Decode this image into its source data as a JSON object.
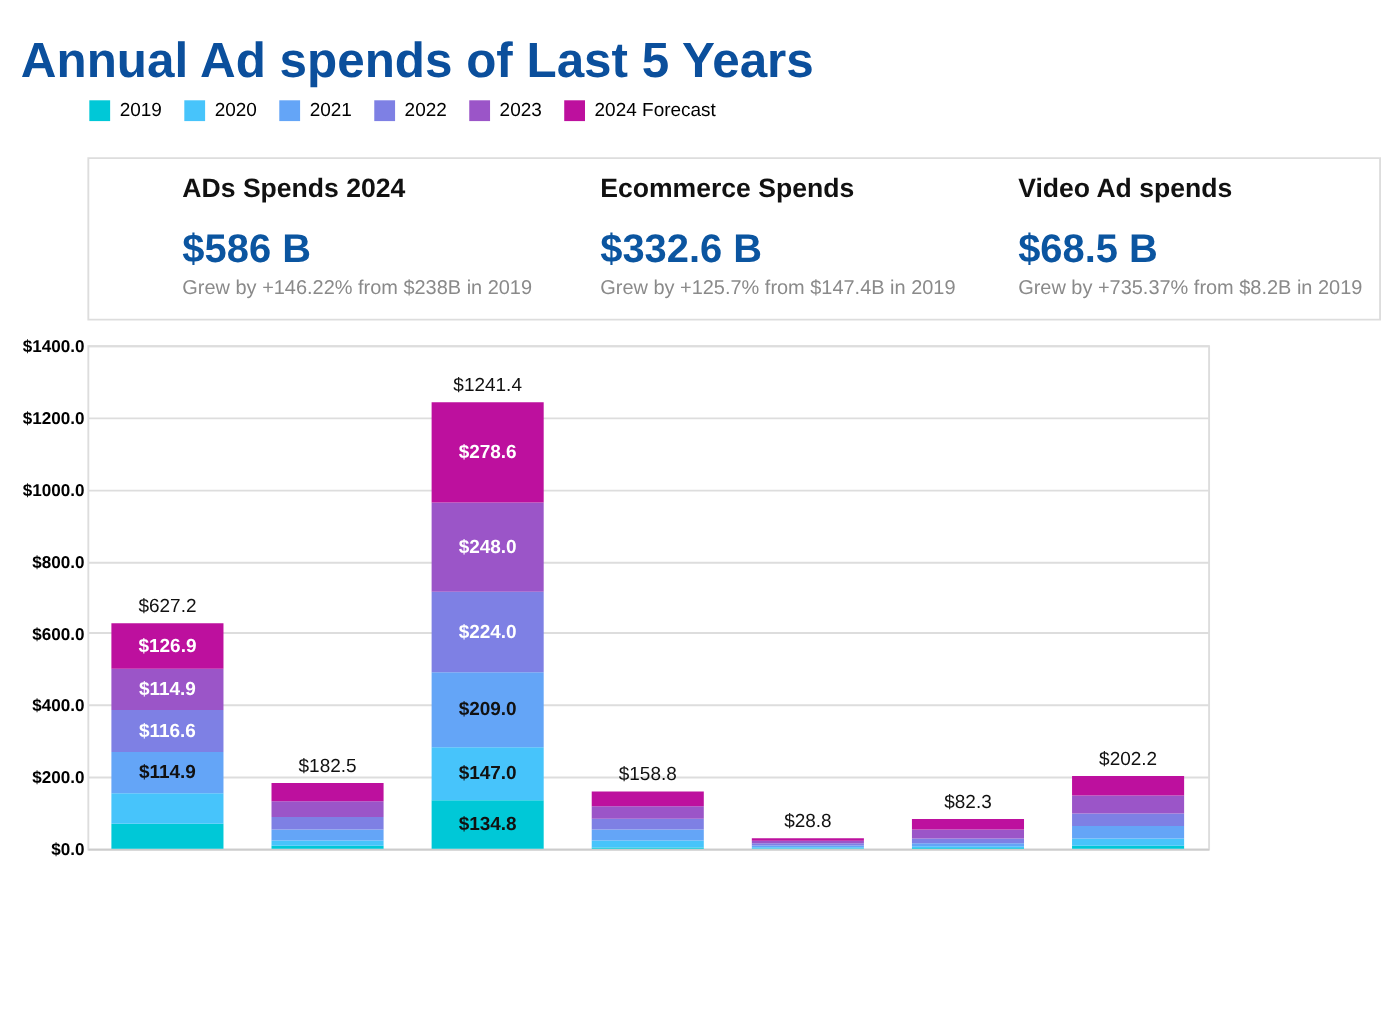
{
  "chart_data": {
    "type": "bar",
    "stacked": true,
    "title": "Annual Ad spends of Last 5 Years",
    "annotations": [
      "ADs Spends 2024",
      "$586 B",
      "Grew by +146.22% from $238B in 2019",
      "Ecommerce Spends",
      "$332.6 B",
      "Grew by +125.7% from $147.4B in 2019",
      "Video Ad spends",
      "$68.5 B",
      "Grew by +735.37% from $8.2B in 2019"
    ],
    "categories": [
      null,
      null,
      null,
      null,
      null,
      null,
      null
    ],
    "series": [
      {
        "name": "2019",
        "color": "#00c8d7",
        "values": [
          69,
          8,
          134.8,
          3,
          1,
          2,
          8
        ],
        "value_labels": [
          null,
          null,
          "$134.8",
          null,
          null,
          null,
          null
        ]
      },
      {
        "name": "2020",
        "color": "#47c4fb",
        "values": [
          84.9,
          15,
          147.0,
          20,
          3,
          5,
          20
        ],
        "value_labels": [
          null,
          null,
          "$147.0",
          null,
          null,
          null,
          null
        ]
      },
      {
        "name": "2021",
        "color": "#64a5f7",
        "values": [
          114.9,
          30,
          209.0,
          30,
          5,
          8,
          35
        ],
        "value_labels": [
          "$114.9",
          null,
          "$209.0",
          null,
          null,
          null,
          null
        ]
      },
      {
        "name": "2022",
        "color": "#7e80e4",
        "values": [
          116.6,
          35,
          224.0,
          30,
          6,
          13,
          35
        ],
        "value_labels": [
          "$116.6",
          null,
          "$224.0",
          null,
          null,
          null,
          null
        ]
      },
      {
        "name": "2023",
        "color": "#9b55c8",
        "values": [
          114.9,
          44,
          248.0,
          35,
          6.8,
          25,
          50
        ],
        "value_labels": [
          "$114.9",
          null,
          "$248.0",
          null,
          null,
          null,
          null
        ]
      },
      {
        "name": "2024 Forecast",
        "color": "#bd109e",
        "values": [
          126.9,
          50.5,
          278.6,
          40.8,
          7,
          29.3,
          54.2
        ],
        "value_labels": [
          "$126.9",
          null,
          "$278.6",
          null,
          null,
          null,
          null
        ]
      }
    ],
    "totals": [
      "$627.2",
      "$182.5",
      "$1241.4",
      "$158.8",
      "$28.8",
      "$82.3",
      "$202.2"
    ],
    "ylim": [
      0,
      1400
    ],
    "yticks": [
      {
        "value": 0,
        "label": "$0.0"
      },
      {
        "value": 200,
        "label": "$200.0"
      },
      {
        "value": 400,
        "label": "$400.0"
      },
      {
        "value": 600,
        "label": "$600.0"
      },
      {
        "value": 800,
        "label": "$800.0"
      },
      {
        "value": 1000,
        "label": "$1000.0"
      },
      {
        "value": 1200,
        "label": "$1200.0"
      },
      {
        "value": 1400,
        "label": "$1400.0"
      }
    ],
    "grid": "y",
    "legend": "top",
    "tick_labels": "y"
  }
}
